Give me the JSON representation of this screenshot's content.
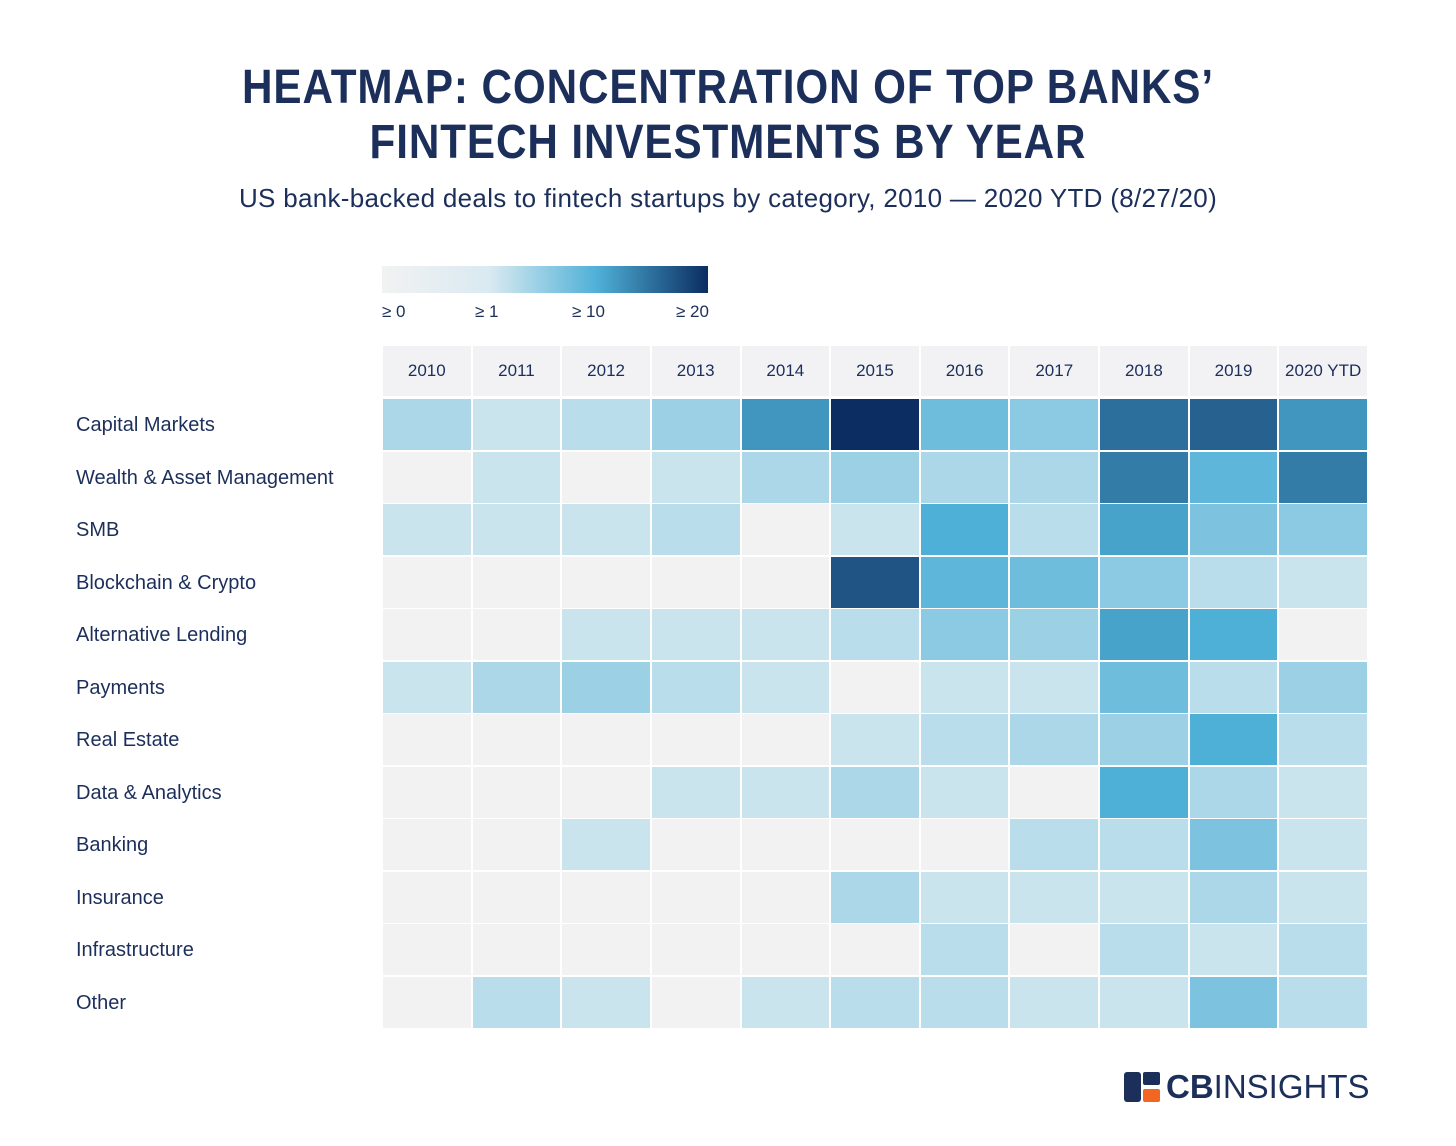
{
  "title_lines": [
    "HEATMAP: CONCENTRATION OF TOP BANKS’",
    "FINTECH INVESTMENTS BY YEAR"
  ],
  "subtitle": "US bank-backed deals to fintech startups by category, 2010 — 2020 YTD (8/27/20)",
  "brand": {
    "bold": "CB",
    "regular": "INSIGHTS",
    "colors": {
      "navy": "#1c2f5b",
      "orange": "#f26522"
    }
  },
  "chart_data": {
    "type": "heatmap",
    "title": "HEATMAP: CONCENTRATION OF TOP BANKS’ FINTECH INVESTMENTS BY YEAR",
    "subtitle": "US bank-backed deals to fintech startups by category, 2010 — 2020 YTD (8/27/20)",
    "legend": {
      "labels": [
        "≥ 0",
        "≥ 1",
        "≥ 10",
        "≥ 20"
      ],
      "colors": [
        "#f2f2f2",
        "#d9eaf1",
        "#4fb0d7",
        "#0b2d61"
      ],
      "placement": "top-left"
    },
    "x": [
      "2010",
      "2011",
      "2012",
      "2013",
      "2014",
      "2015",
      "2016",
      "2017",
      "2018",
      "2019",
      "2020 YTD"
    ],
    "y": [
      "Capital Markets",
      "Wealth & Asset Management",
      "SMB",
      "Blockchain & Crypto",
      "Alternative Lending",
      "Payments",
      "Real Estate",
      "Data & Analytics",
      "Banking",
      "Insurance",
      "Infrastructure",
      "Other"
    ],
    "values": [
      [
        4,
        2,
        3,
        5,
        12,
        22,
        8,
        6,
        15,
        16,
        12
      ],
      [
        0,
        2,
        0,
        2,
        4,
        5,
        4,
        4,
        14,
        9,
        14
      ],
      [
        2,
        2,
        2,
        3,
        0,
        2,
        10,
        3,
        11,
        7,
        6
      ],
      [
        0,
        0,
        0,
        0,
        0,
        17,
        9,
        8,
        6,
        3,
        2
      ],
      [
        0,
        0,
        2,
        2,
        2,
        3,
        6,
        5,
        11,
        10,
        0
      ],
      [
        2,
        4,
        5,
        3,
        2,
        0,
        2,
        2,
        8,
        3,
        5
      ],
      [
        0,
        0,
        0,
        0,
        0,
        2,
        3,
        4,
        5,
        10,
        3
      ],
      [
        0,
        0,
        0,
        2,
        2,
        4,
        2,
        0,
        10,
        4,
        2
      ],
      [
        0,
        0,
        2,
        0,
        0,
        0,
        0,
        3,
        3,
        7,
        2
      ],
      [
        0,
        0,
        0,
        0,
        0,
        4,
        2,
        2,
        2,
        4,
        2
      ],
      [
        0,
        0,
        0,
        0,
        0,
        0,
        3,
        0,
        3,
        2,
        3
      ],
      [
        0,
        3,
        2,
        0,
        2,
        3,
        3,
        2,
        2,
        7,
        3
      ]
    ],
    "grid": false
  }
}
